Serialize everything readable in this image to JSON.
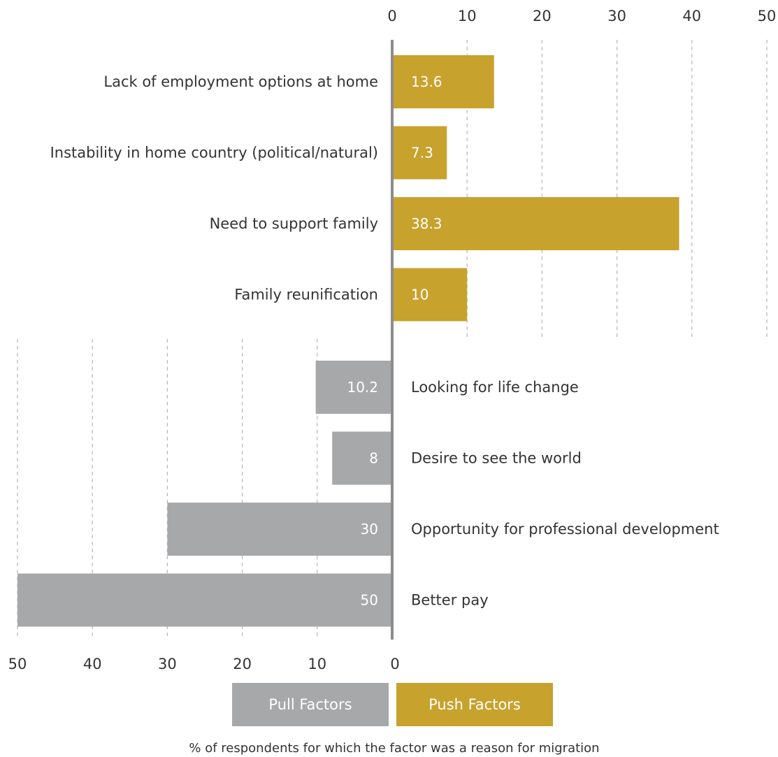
{
  "chart_data": {
    "type": "bar",
    "orientation": "horizontal-diverging",
    "caption": "% of respondents for which the factor was a reason for migration",
    "xlim": [
      0,
      50
    ],
    "ticks": [
      0,
      10,
      20,
      30,
      40,
      50
    ],
    "grid": true,
    "legend": [
      {
        "name": "Pull Factors",
        "color": "#a7a8aa"
      },
      {
        "name": "Push Factors",
        "color": "#c7a22d"
      }
    ],
    "series": [
      {
        "name": "Push Factors",
        "color": "#c7a22d",
        "categories": [
          "Lack of employment options at home",
          "Instability in home country (political/natural)",
          "Need to support family",
          "Family reunification"
        ],
        "values": [
          13.6,
          7.3,
          38.3,
          10
        ]
      },
      {
        "name": "Pull Factors",
        "color": "#a7a8aa",
        "categories": [
          "Looking for life change",
          "Desire to see the world",
          "Opportunity for professional development",
          "Better pay"
        ],
        "values": [
          10.2,
          8,
          30,
          50
        ]
      }
    ]
  }
}
